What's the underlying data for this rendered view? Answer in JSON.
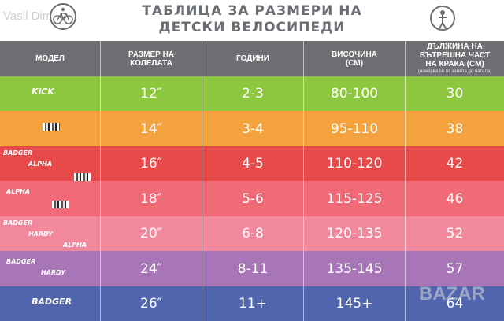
{
  "watermark": "Vasil Dimarev",
  "title_line1": "ТАБЛИЦА ЗА РАЗМЕРИ НА",
  "title_line2": "ДЕТСКИ ВЕЛОСИПЕДИ",
  "headers": {
    "model": "МОДЕЛ",
    "wheel_line1": "РАЗМЕР НА",
    "wheel_line2": "КОЛЕЛАТА",
    "age": "ГОДИНИ",
    "height_line1": "ВИСОЧИНА",
    "height_line2": "(СМ)",
    "inseam_line1": "ДЪЛЖИНА НА",
    "inseam_line2": "ВЪТРЕШНА ЧАСТ",
    "inseam_line3": "НА КРАКА (СМ)",
    "inseam_note": "(измерва се от земята до чатала)"
  },
  "rows": [
    {
      "color": "#8dc63f",
      "brands": [
        "KiCK"
      ],
      "wheel": "12″",
      "age": "2-3",
      "height": "80-100",
      "inseam": "30"
    },
    {
      "color": "#f5a33e",
      "brands": [
        "NOTH"
      ],
      "wheel": "14″",
      "age": "3-4",
      "height": "95-110",
      "inseam": "38"
    },
    {
      "color": "#e84a4a",
      "brands": [
        "BADGER",
        "ALPHA",
        "NOTH"
      ],
      "wheel": "16″",
      "age": "4-5",
      "height": "110-120",
      "inseam": "42"
    },
    {
      "color": "#f06a78",
      "brands": [
        "ALPHA",
        "NOTH"
      ],
      "wheel": "18″",
      "age": "5-6",
      "height": "115-125",
      "inseam": "46"
    },
    {
      "color": "#f1889c",
      "brands": [
        "BADGER",
        "HARDY",
        "ALPHA"
      ],
      "wheel": "20″",
      "age": "6-8",
      "height": "120-135",
      "inseam": "52"
    },
    {
      "color": "#a875b7",
      "brands": [
        "BADGER",
        "HARDY"
      ],
      "wheel": "24″",
      "age": "8-11",
      "height": "135-145",
      "inseam": "57"
    },
    {
      "color": "#5165ae",
      "brands": [
        "BADGER"
      ],
      "wheel": "26″",
      "age": "11+",
      "height": "145+",
      "inseam": "64"
    }
  ],
  "corner_mark": "BAZAR"
}
